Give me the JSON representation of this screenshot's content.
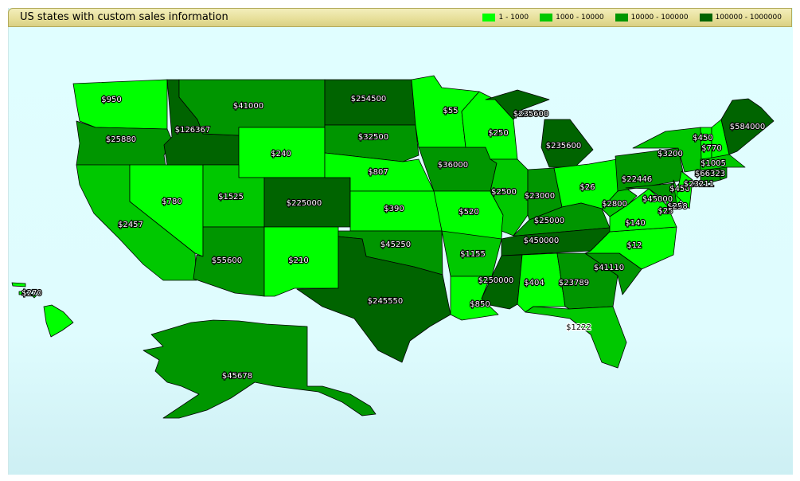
{
  "title": "US states with custom sales information",
  "legend": [
    {
      "label": "1 - 1000",
      "color": "#00ff00"
    },
    {
      "label": "1000 - 10000",
      "color": "#00c800"
    },
    {
      "label": "10000 - 100000",
      "color": "#009600"
    },
    {
      "label": "100000 - 1000000",
      "color": "#006400"
    }
  ],
  "states": [
    {
      "id": "WA",
      "value": 950,
      "label": "$950"
    },
    {
      "id": "OR",
      "value": 25880,
      "label": "$25880"
    },
    {
      "id": "CA",
      "value": 2457,
      "label": "$2457"
    },
    {
      "id": "NV",
      "value": 780,
      "label": "$780"
    },
    {
      "id": "ID",
      "value": 126367,
      "label": "$126367"
    },
    {
      "id": "MT",
      "value": 41000,
      "label": "$41000"
    },
    {
      "id": "WY",
      "value": 240,
      "label": "$240"
    },
    {
      "id": "UT",
      "value": 1525,
      "label": "$1525"
    },
    {
      "id": "CO",
      "value": 225000,
      "label": "$225000"
    },
    {
      "id": "AZ",
      "value": 55600,
      "label": "$55600"
    },
    {
      "id": "NM",
      "value": 210,
      "label": "$210"
    },
    {
      "id": "ND",
      "value": 254500,
      "label": "$254500"
    },
    {
      "id": "SD",
      "value": 32500,
      "label": "$32500"
    },
    {
      "id": "NE",
      "value": 807,
      "label": "$807"
    },
    {
      "id": "KS",
      "value": 390,
      "label": "$390"
    },
    {
      "id": "OK",
      "value": 45250,
      "label": "$45250"
    },
    {
      "id": "TX",
      "value": 245550,
      "label": "$245550"
    },
    {
      "id": "MN",
      "value": 55,
      "label": "$55"
    },
    {
      "id": "IA",
      "value": 36000,
      "label": "$36000"
    },
    {
      "id": "MO",
      "value": 520,
      "label": "$520"
    },
    {
      "id": "AR",
      "value": 1155,
      "label": "$1155"
    },
    {
      "id": "LA",
      "value": 850,
      "label": "$850"
    },
    {
      "id": "WI",
      "value": 250,
      "label": "$250"
    },
    {
      "id": "IL",
      "value": 2500,
      "label": "$2500"
    },
    {
      "id": "MIU",
      "value": 235600,
      "label": "$235600"
    },
    {
      "id": "MI",
      "value": 235600,
      "label": "$235600"
    },
    {
      "id": "IN",
      "value": 23000,
      "label": "$23000"
    },
    {
      "id": "OH",
      "value": 26,
      "label": "$26"
    },
    {
      "id": "KY",
      "value": 25000,
      "label": "$25000"
    },
    {
      "id": "TN",
      "value": 450000,
      "label": "$450000"
    },
    {
      "id": "MS",
      "value": 250000,
      "label": "$250000"
    },
    {
      "id": "AL",
      "value": 404,
      "label": "$404"
    },
    {
      "id": "GA",
      "value": 23789,
      "label": "$23789"
    },
    {
      "id": "FL",
      "value": 1222,
      "label": "$1222"
    },
    {
      "id": "SC",
      "value": 41110,
      "label": "$41110"
    },
    {
      "id": "NC",
      "value": 12,
      "label": "$12"
    },
    {
      "id": "VA",
      "value": 140,
      "label": "$140"
    },
    {
      "id": "WV",
      "value": 2800,
      "label": "$2800"
    },
    {
      "id": "PA",
      "value": 22446,
      "label": "$22446"
    },
    {
      "id": "NY",
      "value": 3200,
      "label": "$3200"
    },
    {
      "id": "MD",
      "value": 45000,
      "label": "$45000"
    },
    {
      "id": "DE",
      "value": 258,
      "label": "$258"
    },
    {
      "id": "NJ",
      "value": 450,
      "label": "$450"
    },
    {
      "id": "CT",
      "value": 23211,
      "label": "$23211"
    },
    {
      "id": "RI",
      "value": 66323,
      "label": "$66323"
    },
    {
      "id": "MA",
      "value": 1005,
      "label": "$1005"
    },
    {
      "id": "VT",
      "value": 450,
      "label": "$450"
    },
    {
      "id": "NH",
      "value": 770,
      "label": "$770"
    },
    {
      "id": "ME",
      "value": 584000,
      "label": "$584000"
    },
    {
      "id": "DC",
      "value": 25,
      "label": "$25"
    },
    {
      "id": "HI",
      "value": 270,
      "label": "$270"
    },
    {
      "id": "AK",
      "value": 45678,
      "label": "$45678"
    }
  ]
}
